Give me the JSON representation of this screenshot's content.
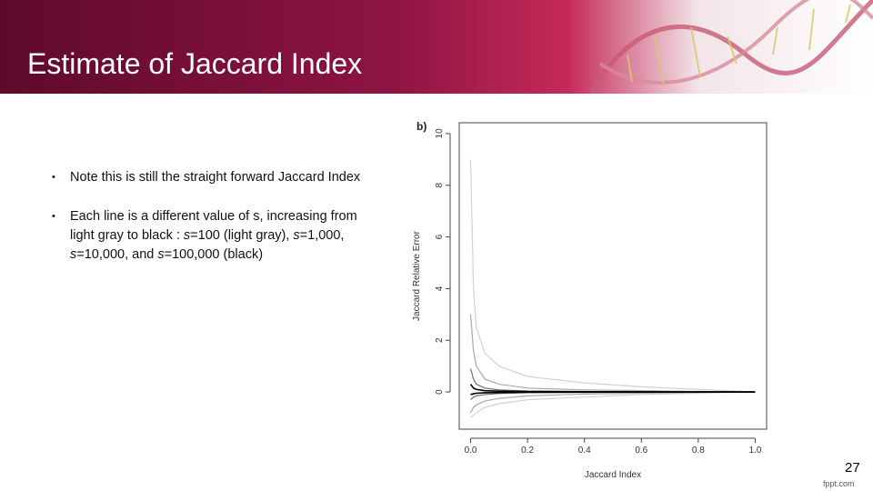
{
  "header": {
    "title": "Estimate of Jaccard Index"
  },
  "bullets": [
    [
      {
        "text": "Note this is still the straight forward Jaccard Index"
      }
    ],
    [
      {
        "text": "Each line is a different value of s, increasing from light gray to black : "
      },
      {
        "text": "s",
        "italic": true
      },
      {
        "text": "=100 (light gray), "
      },
      {
        "text": "s",
        "italic": true
      },
      {
        "text": "=1,000, "
      },
      {
        "text": "s",
        "italic": true
      },
      {
        "text": "=10,000, and "
      },
      {
        "text": "s",
        "italic": true
      },
      {
        "text": "=100,000 (black)"
      }
    ]
  ],
  "page_number": "27",
  "footer": "fppt.com",
  "chart_data": {
    "type": "line",
    "panel_label": "b)",
    "xlabel": "Jaccard Index",
    "ylabel": "Jaccard Relative Error",
    "xlim": [
      -0.04,
      1.04
    ],
    "ylim": [
      -1.44,
      10.42
    ],
    "xticks": [
      {
        "value": 0,
        "label": "0.0"
      },
      0.2,
      0.4,
      0.6,
      0.8,
      {
        "value": 1,
        "label": "1.0"
      }
    ],
    "yticks": [
      0,
      2,
      4,
      6,
      8,
      10
    ],
    "x": [
      0,
      0.01,
      0.02,
      0.05,
      0.1,
      0.2,
      0.4,
      0.6,
      0.8,
      1.0
    ],
    "series": [
      {
        "color": "#d2d2d2",
        "values": [
          9,
          4,
          2.5,
          1.5,
          1.0,
          0.6,
          0.35,
          0.2,
          0.1,
          0
        ]
      },
      {
        "color": "#d2d2d2",
        "values": [
          -1,
          -0.9,
          -0.8,
          -0.6,
          -0.45,
          -0.3,
          -0.2,
          -0.1,
          -0.05,
          0
        ]
      },
      {
        "color": "#a8a8a8",
        "values": [
          3,
          1.6,
          1.0,
          0.5,
          0.3,
          0.15,
          0.08,
          0.05,
          0.02,
          0
        ]
      },
      {
        "color": "#a8a8a8",
        "values": [
          -0.8,
          -0.6,
          -0.5,
          -0.35,
          -0.25,
          -0.15,
          -0.08,
          -0.05,
          -0.02,
          0
        ]
      },
      {
        "color": "#6e6e6e",
        "values": [
          0.9,
          0.5,
          0.3,
          0.15,
          0.08,
          0.04,
          0.02,
          0.01,
          0.005,
          0
        ]
      },
      {
        "color": "#6e6e6e",
        "values": [
          -0.3,
          -0.2,
          -0.15,
          -0.1,
          -0.06,
          -0.03,
          -0.02,
          -0.01,
          -0.005,
          0
        ]
      },
      {
        "color": "#000000",
        "values": [
          0.3,
          0.15,
          0.1,
          0.05,
          0.03,
          0.015,
          0.008,
          0.004,
          0.002,
          0
        ]
      },
      {
        "color": "#000000",
        "values": [
          -0.1,
          -0.07,
          -0.05,
          -0.03,
          -0.02,
          -0.01,
          -0.005,
          -0.003,
          -0.001,
          0
        ]
      }
    ]
  }
}
